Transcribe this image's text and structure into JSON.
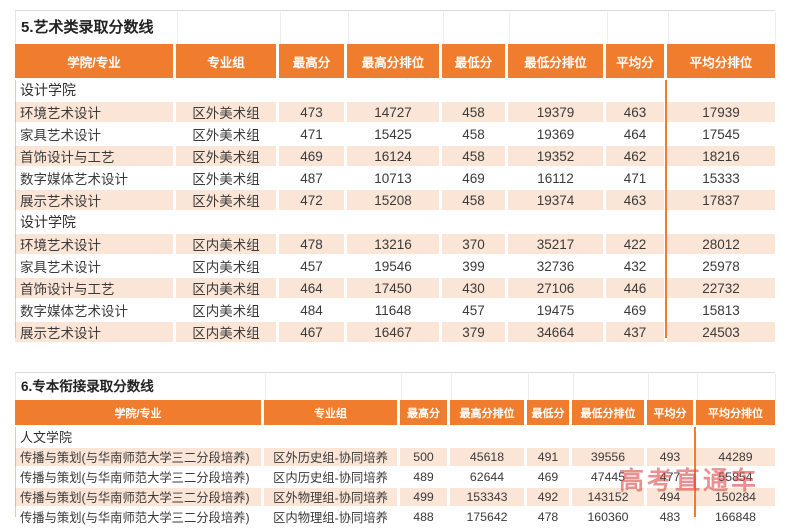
{
  "page": {
    "watermark": "高考直通车"
  },
  "colors": {
    "header_bg": "#EF7D2D",
    "row_alt_bg": "#FBE5D6",
    "divider_orange": "#ED7D31",
    "watermark_red": "#DE4646"
  },
  "table1": {
    "title": "5.艺术类录取分数线",
    "headers": [
      "学院/专业",
      "专业组",
      "最高分",
      "最高分排位",
      "最低分",
      "最低分排位",
      "平均分",
      "平均分排位"
    ],
    "rows": [
      {
        "type": "section",
        "label": "设计学院"
      },
      {
        "type": "data",
        "cells": [
          "环境艺术设计",
          "区外美术组",
          "473",
          "14727",
          "458",
          "19379",
          "463",
          "17939"
        ]
      },
      {
        "type": "data",
        "cells": [
          "家具艺术设计",
          "区外美术组",
          "471",
          "15425",
          "458",
          "19369",
          "464",
          "17545"
        ]
      },
      {
        "type": "data",
        "cells": [
          "首饰设计与工艺",
          "区外美术组",
          "469",
          "16124",
          "458",
          "19352",
          "462",
          "18216"
        ]
      },
      {
        "type": "data",
        "cells": [
          "数字媒体艺术设计",
          "区外美术组",
          "487",
          "10713",
          "469",
          "16112",
          "471",
          "15333"
        ]
      },
      {
        "type": "data",
        "cells": [
          "展示艺术设计",
          "区外美术组",
          "472",
          "15208",
          "458",
          "19374",
          "463",
          "17837"
        ]
      },
      {
        "type": "section",
        "label": "设计学院"
      },
      {
        "type": "data",
        "cells": [
          "环境艺术设计",
          "区内美术组",
          "478",
          "13216",
          "370",
          "35217",
          "422",
          "28012"
        ]
      },
      {
        "type": "data",
        "cells": [
          "家具艺术设计",
          "区内美术组",
          "457",
          "19546",
          "399",
          "32736",
          "432",
          "25978"
        ]
      },
      {
        "type": "data",
        "cells": [
          "首饰设计与工艺",
          "区内美术组",
          "464",
          "17450",
          "430",
          "27106",
          "446",
          "22732"
        ]
      },
      {
        "type": "data",
        "cells": [
          "数字媒体艺术设计",
          "区内美术组",
          "484",
          "11648",
          "457",
          "19475",
          "469",
          "15813"
        ]
      },
      {
        "type": "data",
        "cells": [
          "展示艺术设计",
          "区内美术组",
          "467",
          "16467",
          "379",
          "34664",
          "437",
          "24503"
        ]
      }
    ]
  },
  "table2": {
    "title": "6.专本衔接录取分数线",
    "headers": [
      "学院/专业",
      "专业组",
      "最高分",
      "最高分排位",
      "最低分",
      "最低分排位",
      "平均分",
      "平均分排位"
    ],
    "rows": [
      {
        "type": "section",
        "label": "人文学院"
      },
      {
        "type": "data",
        "cells": [
          "传播与策划(与华南师范大学三二分段培养)",
          "区外历史组-协同培养",
          "500",
          "45618",
          "491",
          "39556",
          "493",
          "44289"
        ]
      },
      {
        "type": "data",
        "cells": [
          "传播与策划(与华南师范大学三二分段培养)",
          "区内历史组-协同培养",
          "489",
          "62644",
          "469",
          "47445",
          "477",
          "55854"
        ]
      },
      {
        "type": "data",
        "cells": [
          "传播与策划(与华南师范大学三二分段培养)",
          "区外物理组-协同培养",
          "499",
          "153343",
          "492",
          "143152",
          "494",
          "150284"
        ]
      },
      {
        "type": "data",
        "cells": [
          "传播与策划(与华南师范大学三二分段培养)",
          "区内物理组-协同培养",
          "488",
          "175642",
          "478",
          "160360",
          "483",
          "166848"
        ]
      }
    ]
  }
}
